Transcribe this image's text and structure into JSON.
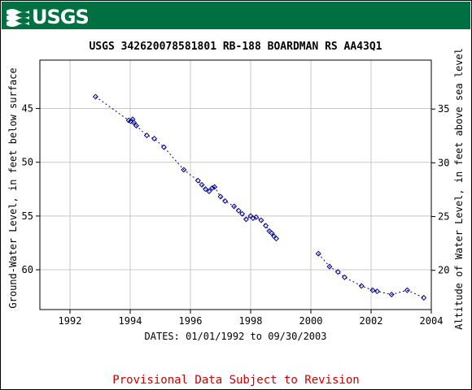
{
  "header": {
    "logo_text": "USGS",
    "logo_icon": "usgs-wave-icon",
    "banner_color": "#006f41"
  },
  "footer": {
    "provisional_text": "Provisional Data Subject to Revision",
    "color": "#cc0000"
  },
  "chart_data": {
    "type": "scatter",
    "title": "USGS 342620078581801 RB-188 BOARDMAN RS AA43Q1",
    "xlabel": "DATES: 01/01/1992 to 09/30/2003",
    "ylabel": "Ground-Water Level, in feet below surface",
    "y2label": "Altitude of Water Level, in feet above sea level",
    "xlim": [
      1991.0,
      2004.0
    ],
    "ylim": [
      63.7,
      40.5
    ],
    "y_inverted": true,
    "y2lim": [
      16.35,
      39.55
    ],
    "x_ticks": [
      1992,
      1994,
      1996,
      1998,
      2000,
      2002,
      2004
    ],
    "x_tick_labels": [
      "1992",
      "1994",
      "1996",
      "1998",
      "2000",
      "2002",
      "2004"
    ],
    "y_ticks": [
      45,
      50,
      55,
      60
    ],
    "y_tick_labels": [
      "45",
      "50",
      "55",
      "60"
    ],
    "y2_ticks": [
      35,
      30,
      25,
      20
    ],
    "y2_tick_labels": [
      "35",
      "30",
      "25",
      "20"
    ],
    "grid": true,
    "marker": "diamond",
    "line_style": "dotted",
    "color": "#00008b",
    "segments": [
      {
        "x": [
          1992.85,
          1993.95,
          1994.02,
          1994.08,
          1994.12,
          1994.2,
          1994.55,
          1994.8,
          1995.12,
          1995.78,
          1996.25,
          1996.38,
          1996.5,
          1996.62,
          1996.72,
          1996.8,
          1997.0,
          1997.15,
          1997.45,
          1997.6,
          1997.72,
          1997.85,
          1998.0,
          1998.08,
          1998.18,
          1998.35,
          1998.5,
          1998.62,
          1998.7,
          1998.78,
          1998.85
        ],
        "y": [
          43.9,
          46.1,
          46.2,
          46.0,
          46.3,
          46.6,
          47.5,
          47.8,
          48.6,
          50.7,
          51.7,
          52.1,
          52.5,
          52.7,
          52.4,
          52.3,
          53.2,
          53.6,
          54.1,
          54.5,
          54.8,
          55.3,
          55.0,
          55.2,
          55.1,
          55.4,
          55.9,
          56.4,
          56.6,
          56.9,
          57.1
        ]
      },
      {
        "x": [
          2000.25,
          2000.62,
          2000.9,
          2001.12,
          2001.68,
          2002.05,
          2002.2,
          2002.68,
          2003.2,
          2003.75
        ],
        "y": [
          58.5,
          59.7,
          60.2,
          60.7,
          61.5,
          61.9,
          62.0,
          62.3,
          61.9,
          62.6
        ]
      }
    ]
  }
}
